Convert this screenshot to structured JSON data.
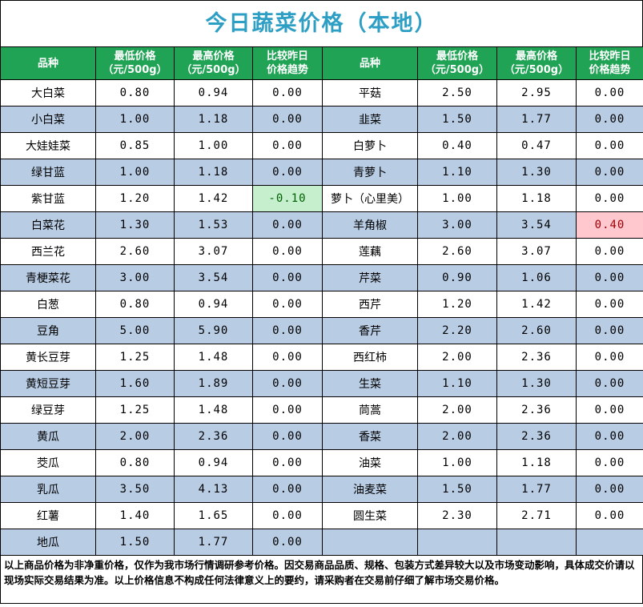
{
  "title": "今日蔬菜价格（本地）",
  "headers": {
    "name": "品种",
    "low": "最低价格",
    "low_unit": "（元/500g）",
    "high": "最高价格",
    "high_unit": "（元/500g）",
    "trend": "比较昨日",
    "trend2": "价格趋势"
  },
  "colors": {
    "title": "#2e9fc4",
    "header_bg": "#21a355",
    "alt_row": "#b8cce4",
    "down_bg": "#c6efce",
    "up_bg": "#ffc7ce"
  },
  "left": [
    {
      "name": "大白菜",
      "low": "0.80",
      "high": "0.94",
      "trend": "0.00"
    },
    {
      "name": "小白菜",
      "low": "1.00",
      "high": "1.18",
      "trend": "0.00"
    },
    {
      "name": "大娃娃菜",
      "low": "0.85",
      "high": "1.00",
      "trend": "0.00"
    },
    {
      "name": "绿甘蓝",
      "low": "1.00",
      "high": "1.18",
      "trend": "0.00"
    },
    {
      "name": "紫甘蓝",
      "low": "1.20",
      "high": "1.42",
      "trend": "-0.10"
    },
    {
      "name": "白菜花",
      "low": "1.30",
      "high": "1.53",
      "trend": "0.00"
    },
    {
      "name": "西兰花",
      "low": "2.60",
      "high": "3.07",
      "trend": "0.00"
    },
    {
      "name": "青梗菜花",
      "low": "3.00",
      "high": "3.54",
      "trend": "0.00"
    },
    {
      "name": "白葱",
      "low": "0.80",
      "high": "0.94",
      "trend": "0.00"
    },
    {
      "name": "豆角",
      "low": "5.00",
      "high": "5.90",
      "trend": "0.00"
    },
    {
      "name": "黄长豆芽",
      "low": "1.25",
      "high": "1.48",
      "trend": "0.00"
    },
    {
      "name": "黄短豆芽",
      "low": "1.60",
      "high": "1.89",
      "trend": "0.00"
    },
    {
      "name": "绿豆芽",
      "low": "1.25",
      "high": "1.48",
      "trend": "0.00"
    },
    {
      "name": "黄瓜",
      "low": "2.00",
      "high": "2.36",
      "trend": "0.00"
    },
    {
      "name": "茭瓜",
      "low": "0.80",
      "high": "0.94",
      "trend": "0.00"
    },
    {
      "name": "乳瓜",
      "low": "3.50",
      "high": "4.13",
      "trend": "0.00"
    },
    {
      "name": "红薯",
      "low": "1.40",
      "high": "1.65",
      "trend": "0.00"
    },
    {
      "name": "地瓜",
      "low": "1.50",
      "high": "1.77",
      "trend": "0.00"
    }
  ],
  "right": [
    {
      "name": "平菇",
      "low": "2.50",
      "high": "2.95",
      "trend": "0.00"
    },
    {
      "name": "韭菜",
      "low": "1.50",
      "high": "1.77",
      "trend": "0.00"
    },
    {
      "name": "白萝卜",
      "low": "0.40",
      "high": "0.47",
      "trend": "0.00"
    },
    {
      "name": "青萝卜",
      "low": "1.10",
      "high": "1.30",
      "trend": "0.00"
    },
    {
      "name": "萝卜（心里美）",
      "low": "1.00",
      "high": "1.18",
      "trend": "0.00"
    },
    {
      "name": "羊角椒",
      "low": "3.00",
      "high": "3.54",
      "trend": "0.40"
    },
    {
      "name": "莲藕",
      "low": "2.60",
      "high": "3.07",
      "trend": "0.00"
    },
    {
      "name": "芹菜",
      "low": "0.90",
      "high": "1.06",
      "trend": "0.00"
    },
    {
      "name": "西芹",
      "low": "1.20",
      "high": "1.42",
      "trend": "0.00"
    },
    {
      "name": "香芹",
      "low": "2.20",
      "high": "2.60",
      "trend": "0.00"
    },
    {
      "name": "西红柿",
      "low": "2.00",
      "high": "2.36",
      "trend": "0.00"
    },
    {
      "name": "生菜",
      "low": "1.10",
      "high": "1.30",
      "trend": "0.00"
    },
    {
      "name": "茼蒿",
      "low": "2.00",
      "high": "2.36",
      "trend": "0.00"
    },
    {
      "name": "香菜",
      "low": "2.00",
      "high": "2.36",
      "trend": "0.00"
    },
    {
      "name": "油菜",
      "low": "1.00",
      "high": "1.18",
      "trend": "0.00"
    },
    {
      "name": "油麦菜",
      "low": "1.50",
      "high": "1.77",
      "trend": "0.00"
    },
    {
      "name": "圆生菜",
      "low": "2.30",
      "high": "2.71",
      "trend": "0.00"
    },
    {
      "name": "",
      "low": "",
      "high": "",
      "trend": ""
    }
  ],
  "footer": "以上商品价格为非净重价格，仅作为我市场行情调研参考价格。因交易商品品质、规格、包装方式差异较大以及市场变动影响，具体成交价请以现场实际交易结果为准。以上价格信息不构成任何法律意义上的要约，请采购者在交易前仔细了解市场交易价格。"
}
